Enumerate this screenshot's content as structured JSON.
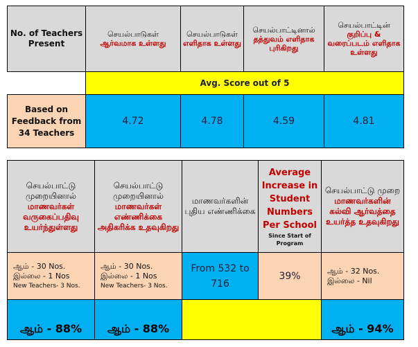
{
  "top_table": {
    "teachers_header": "No. of Teachers Present",
    "columns": [
      {
        "line1": "செயல்பாடுகள்",
        "line2": "ஆர்வமாக உள்ளது"
      },
      {
        "line1": "செயல்பாடுகள்",
        "line2": "எளிதாக உள்ளது"
      },
      {
        "line1": "செயல்பாட்டினால்",
        "line2": "தத்துவம் எளிதாக புரிகிறது"
      },
      {
        "line1": "செயல்பாட்டின்",
        "line2": "குறிப்பு & வரைப்படம் எளிதாக உள்ளது"
      }
    ],
    "avg_label": "Avg. Score out of 5",
    "row_label": "Based on Feedback from 34 Teachers",
    "scores": [
      "4.72",
      "4.78",
      "4.59",
      "4.81"
    ]
  },
  "bottom_table": {
    "col1": {
      "line1": "செயல்பாட்டு முறையினால்",
      "line2": "மாணவர்கள் வருகைப்பதிவு உயர்ந்துள்ளது"
    },
    "col2": {
      "line1": "செயல்பாட்டு முறையினால்",
      "line2": "மாணவர்கள் எண்ணிக்கை அதிகரிக்க உதவுகிறது"
    },
    "col3": {
      "line1": "மாணவர்களின் புதிய எண்ணிக்கை"
    },
    "col4": {
      "title": "Average Increase in Student Numbers Per School",
      "note": "Since Start of Program"
    },
    "col5": {
      "line1": "செயல்பாட்டு முறை",
      "line2": "மாணவர்களின் கல்வி ஆர்வத்தை உயர்த்த உதவுகிறது"
    },
    "counts1": {
      "yes": "ஆம்  - 30 Nos.",
      "no": "இல்லை - 1 Nos",
      "new": "New Teachers- 3 Nos."
    },
    "counts2": {
      "yes": "ஆம்  - 30 Nos.",
      "no": "இல்லை - 1 Nos",
      "new": "New Teachers- 3 Nos."
    },
    "from_text": "From 532  to 716",
    "increase": "39%",
    "counts5": {
      "yes": "ஆம் - 32 Nos.",
      "no": "இல்லை - Nil"
    },
    "pct1": "ஆம் - 88%",
    "pct2": "ஆம் - 88%",
    "pct5": "ஆம் - 94%"
  }
}
